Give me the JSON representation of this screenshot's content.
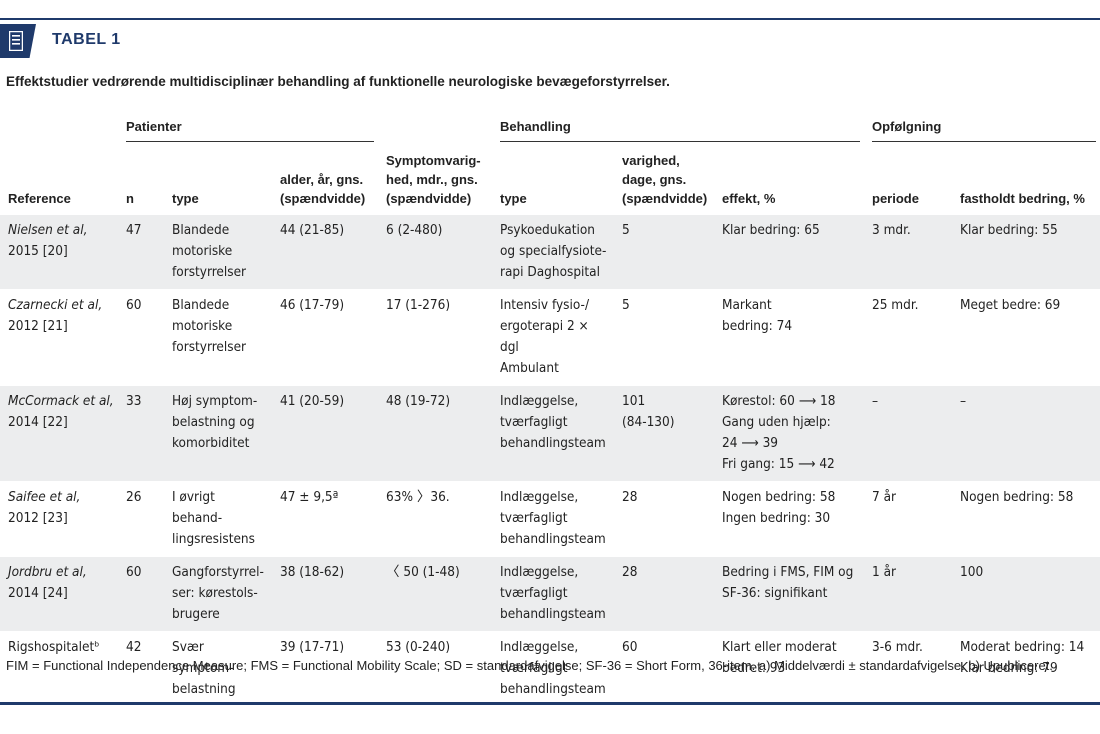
{
  "title": "TABEL 1",
  "caption": "Effektstudier vedrørende multidisciplinær behandling af funktionelle neurologiske bevægeforstyrrelser.",
  "groups": {
    "patients": "Patienter",
    "treatment": "Behandling",
    "followup": "Opfølgning"
  },
  "columns": {
    "reference": "Reference",
    "n": "n",
    "type": "type",
    "age": [
      "alder, år, gns.",
      "(spændvidde)"
    ],
    "symptom": [
      "Symptomvarig-",
      "hed, mdr., gns.",
      "(spændvidde)"
    ],
    "treat_type": "type",
    "duration": [
      "varighed,",
      "dage, gns.",
      "(spændvidde)"
    ],
    "effect": "effekt, %",
    "period": "periode",
    "sustained": "fastholdt bedring, %"
  },
  "rows": [
    {
      "reference": [
        "Nielsen et al,",
        "2015 [20]"
      ],
      "ref_italic_first": true,
      "n": "47",
      "type": [
        "Blandede",
        "motoriske",
        "forstyrrelser"
      ],
      "age": "44 (21-85)",
      "symptom": "6 (2-480)",
      "treat_type": [
        "Psykoedukation",
        "og specialfysiote-",
        "rapi Daghospital"
      ],
      "duration": [
        "5"
      ],
      "effect": [
        "Klar bedring: 65"
      ],
      "period": "3 mdr.",
      "sustained": [
        "Klar bedring: 55"
      ]
    },
    {
      "reference": [
        "Czarnecki et al,",
        "2012 [21]"
      ],
      "ref_italic_first": true,
      "n": "60",
      "type": [
        "Blandede",
        "motoriske",
        "forstyrrelser"
      ],
      "age": "46 (17-79)",
      "symptom": "17 (1-276)",
      "treat_type": [
        "Intensiv fysio-/",
        "ergoterapi 2 × dgl",
        "Ambulant"
      ],
      "duration": [
        "5"
      ],
      "effect": [
        "Markant",
        "bedring: 74"
      ],
      "period": "25 mdr.",
      "sustained": [
        "Meget bedre: 69"
      ]
    },
    {
      "reference": [
        "McCormack et al,",
        "2014 [22]"
      ],
      "ref_italic_first": true,
      "n": "33",
      "type": [
        "Høj symptom-",
        "belastning og",
        "komorbiditet"
      ],
      "age": "41 (20-59)",
      "symptom": "48 (19-72)",
      "treat_type": [
        "Indlæggelse,",
        "tværfagligt",
        "behandlingsteam"
      ],
      "duration": [
        "101",
        "(84-130)"
      ],
      "effect": [
        "Kørestol: 60 ⟶ 18",
        "Gang uden hjælp:",
        "24 ⟶ 39",
        "Fri gang: 15 ⟶ 42"
      ],
      "period": "–",
      "sustained": [
        "–"
      ]
    },
    {
      "reference": [
        "Saifee et al,",
        "2012 [23]"
      ],
      "ref_italic_first": true,
      "n": "26",
      "type": [
        "I øvrigt behand-",
        "lingsresistens"
      ],
      "age": "47 ± 9,5ª",
      "symptom": "63% 〉36.",
      "treat_type": [
        "Indlæggelse,",
        "tværfagligt",
        "behandlingsteam"
      ],
      "duration": [
        "28"
      ],
      "effect": [
        "Nogen bedring: 58",
        "Ingen bedring: 30"
      ],
      "period": "7 år",
      "sustained": [
        "Nogen bedring: 58"
      ]
    },
    {
      "reference": [
        "Jordbru et al,",
        "2014 [24]"
      ],
      "ref_italic_first": true,
      "n": "60",
      "type": [
        "Gangforstyrrel-",
        "ser: kørestols-",
        "brugere"
      ],
      "age": "38 (18-62)",
      "symptom": "〈 50 (1-48)",
      "treat_type": [
        "Indlæggelse,",
        "tværfagligt",
        "behandlingsteam"
      ],
      "duration": [
        "28"
      ],
      "effect": [
        "Bedring i FMS, FIM og",
        "SF-36: signifikant"
      ],
      "period": "1 år",
      "sustained": [
        "100"
      ]
    },
    {
      "reference": [
        "Rigshospitaletᵇ"
      ],
      "ref_italic_first": false,
      "n": "42",
      "type": [
        "Svær symptom-",
        "belastning"
      ],
      "age": "39 (17-71)",
      "symptom": "53 (0-240)",
      "treat_type": [
        "Indlæggelse,",
        "tværfagligt",
        "behandlingsteam"
      ],
      "duration": [
        "60"
      ],
      "effect": [
        "Klart eller moderat",
        "bedret: 93"
      ],
      "period": "3-6 mdr.",
      "sustained": [
        "Moderat bedring: 14",
        "Klar bedring: 79"
      ]
    }
  ],
  "footnote": "FIM = Functional Independence Measure; FMS = Functional Mobility Scale; SD = standardafvigelse; SF-36 = Short Form, 36-item. a) Middelværdi ± standardafvigelse. b) Upubliceret.",
  "colors": {
    "accent": "#1f3a6b",
    "row_shade": "#ecedee"
  },
  "icons": {
    "title": "document-list-icon"
  }
}
